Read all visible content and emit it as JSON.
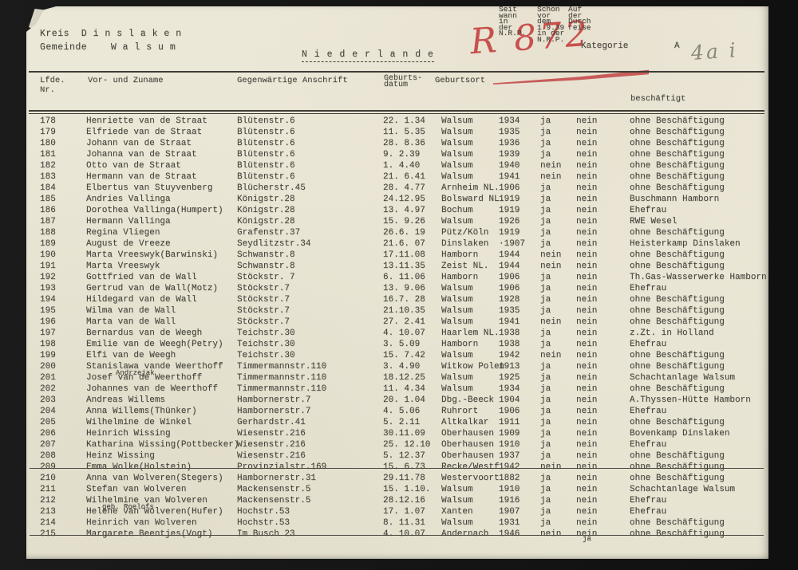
{
  "header": {
    "kreis_line": "Kreis  D i n s l a k e n",
    "gemeinde_line": "Gemeinde    W a l s u m",
    "country_heading": "N i e d e r l a n d e",
    "stamp": "R 872",
    "stamp_color": "#c43c3a",
    "category_label": "Kategorie",
    "category_value": "A",
    "pencil_note": "4a i"
  },
  "table": {
    "columns": {
      "nr": "Lfde.\nNr.",
      "name": "Vor- und Zuname",
      "address": "Gegenwärtige Anschrift",
      "born": "Geburts-\ndatum",
      "place": "Geburtsort",
      "seit": "Seit\nwann\nin\nder\nN.R.P.",
      "schon": "Schon\nvor\ndem\n1.9.39\nin der\nN.R.P.",
      "auf": "Auf\nder\nDurch\nreise",
      "job": "beschäftigt"
    },
    "rows": [
      {
        "nr": "178",
        "name": "Henriette van de Straat",
        "address": "Blütenstr.6",
        "born": "22. 1.34",
        "place": "Walsum",
        "seit": "1934",
        "schon": "ja",
        "auf": "nein",
        "job": "ohne Beschäftigung"
      },
      {
        "nr": "179",
        "name": "Elfriede van de Straat",
        "address": "Blütenstr.6",
        "born": "11. 5.35",
        "place": "Walsum",
        "seit": "1935",
        "schon": "ja",
        "auf": "nein",
        "job": "ohne Beschäftigung"
      },
      {
        "nr": "180",
        "name": "Johann van de Straat",
        "address": "Blütenstr.6",
        "born": "28. 8.36",
        "place": "Walsum",
        "seit": "1936",
        "schon": "ja",
        "auf": "nein",
        "job": "ohne Beschäftigung"
      },
      {
        "nr": "181",
        "name": "Johanna van de Straat",
        "address": "Blütenstr.6",
        "born": "9. 2.39",
        "place": "Walsum",
        "seit": "1939",
        "schon": "ja",
        "auf": "nein",
        "job": "ohne Beschäftigung"
      },
      {
        "nr": "182",
        "name": "Otto van de Straat",
        "address": "Blütenstr.6",
        "born": "1. 4.40",
        "place": "Walsum",
        "seit": "1940",
        "schon": "nein",
        "auf": "nein",
        "job": "ohne Beschäftigung"
      },
      {
        "nr": "183",
        "name": "Hermann van de Straat",
        "address": "Blütenstr.6",
        "born": "21. 6.41",
        "place": "Walsum",
        "seit": "1941",
        "schon": "nein",
        "auf": "nein",
        "job": "ohne Beschäftigung"
      },
      {
        "nr": "184",
        "name": "Elbertus van Stuyvenberg",
        "address": "Blücherstr.45",
        "born": "28. 4.77",
        "place": "Arnheim NL.",
        "seit": "1906",
        "schon": "ja",
        "auf": "nein",
        "job": "ohne Beschäftigung"
      },
      {
        "nr": "185",
        "name": "Andries Vallinga",
        "address": "Königstr.28",
        "born": "24.12.95",
        "place": "Bolsward NL.",
        "seit": "1919",
        "schon": "ja",
        "auf": "nein",
        "job": "Buschmann Hamborn"
      },
      {
        "nr": "186",
        "name": "Dorothea Vallinga(Humpert)",
        "address": "Königstr.28",
        "born": "13. 4.97",
        "place": "Bochum",
        "seit": "1919",
        "schon": "ja",
        "auf": "nein",
        "job": "Ehefrau"
      },
      {
        "nr": "187",
        "name": "Hermann Vallinga",
        "address": "Königstr.28",
        "born": "15. 9.26",
        "place": "Walsum",
        "seit": "1926",
        "schon": "ja",
        "auf": "nein",
        "job": "RWE Wesel"
      },
      {
        "nr": "188",
        "name": "Regina Vliegen",
        "address": "Grafenstr.37",
        "born": "26.6. 19",
        "place": "Pütz/Köln",
        "seit": "1919",
        "schon": "ja",
        "auf": "nein",
        "job": "ohne Beschäftigung"
      },
      {
        "nr": "189",
        "name": "August de Vreeze",
        "address": "Seydlitzstr.34",
        "born": "21.6. 07",
        "place": "Dinslaken",
        "seit": "·1907",
        "schon": "ja",
        "auf": "nein",
        "job": "Heisterkamp Dinslaken"
      },
      {
        "nr": "190",
        "name": "Marta Vreeswyk(Barwinski)",
        "address": "Schwanstr.8",
        "born": "17.11.08",
        "place": "Hamborn",
        "seit": "1944",
        "schon": "nein",
        "auf": "nein",
        "job": "ohne Beschäftigung"
      },
      {
        "nr": "191",
        "name": "Marta Vreeswyk",
        "address": "Schwanstr.8",
        "born": "13.11.35",
        "place": "Zeist NL.",
        "seit": "1944",
        "schon": "nein",
        "auf": "nein",
        "job": "ohne Beschäftigung"
      },
      {
        "nr": "192",
        "name": "Gottfried van de Wall",
        "address": "Stöckstr. 7",
        "born": "6. 11.06",
        "place": "Hamborn",
        "seit": "1906",
        "schon": "ja",
        "auf": "nein",
        "job": "Th.Gas-Wasserwerke Hamborn"
      },
      {
        "nr": "193",
        "name": "Gertrud van de Wall(Motz)",
        "address": "Stöckstr.7",
        "born": "13. 9.06",
        "place": "Walsum",
        "seit": "1906",
        "schon": "ja",
        "auf": "nein",
        "job": "Ehefrau"
      },
      {
        "nr": "194",
        "name": "Hildegard van de Wall",
        "address": "Stöckstr.7",
        "born": "16.7. 28",
        "place": "Walsum",
        "seit": "1928",
        "schon": "ja",
        "auf": "nein",
        "job": "ohne Beschäftigung"
      },
      {
        "nr": "195",
        "name": "Wilma van de Wall",
        "address": "Stöckstr.7",
        "born": "21.10.35",
        "place": "Walsum",
        "seit": "1935",
        "schon": "ja",
        "auf": "nein",
        "job": "ohne Beschäftigung"
      },
      {
        "nr": "196",
        "name": "Marta van de Wall",
        "address": "Stöckstr.7",
        "born": "27. 2.41",
        "place": "Walsum",
        "seit": "1941",
        "schon": "nein",
        "auf": "nein",
        "job": "ohne Beschäftigung"
      },
      {
        "nr": "197",
        "name": "Bernardus van de Weegh",
        "address": "Teichstr.30",
        "born": "4. 10.07",
        "place": "Haarlem NL.",
        "seit": "1938",
        "schon": "ja",
        "auf": "nein",
        "job": "z.Zt. in Holland"
      },
      {
        "nr": "198",
        "name": "Emilie van de Weegh(Petry)",
        "address": "Teichstr.30",
        "born": "3. 5.09",
        "place": "Hamborn",
        "seit": "1938",
        "schon": "ja",
        "auf": "nein",
        "job": "Ehefrau"
      },
      {
        "nr": "199",
        "name": "Elfi van de Weegh",
        "address": "Teichstr.30",
        "born": "15. 7.42",
        "place": "Walsum",
        "seit": "1942",
        "schon": "nein",
        "auf": "nein",
        "job": "ohne Beschäftigung"
      },
      {
        "nr": "200",
        "name": "Stanislawa vande Weerthoff",
        "note_below": "Andrzejak",
        "address": "Timmermannstr.110",
        "born": "3. 4.90",
        "place": "Witkow Polen",
        "seit": "1913",
        "schon": "ja",
        "auf": "nein",
        "job": "ohne Beschäftigung"
      },
      {
        "nr": "201",
        "name": "Josef van de Weerthoff",
        "address": "Timmermannstr.110",
        "born": "18.12.25",
        "place": "Walsum",
        "seit": "1925",
        "schon": "ja",
        "auf": "nein",
        "job": "Schachtanlage Walsum"
      },
      {
        "nr": "202",
        "name": "Johannes van de Weerthoff",
        "address": "Timmermannstr.110",
        "born": "11. 4.34",
        "place": "Walsum",
        "seit": "1934",
        "schon": "ja",
        "auf": "nein",
        "job": "ohne Beschäftigung"
      },
      {
        "nr": "203",
        "name": "Andreas Willems",
        "address": "Hambornerstr.7",
        "born": "20. 1.04",
        "place": "Dbg.-Beeck",
        "seit": "1904",
        "schon": "ja",
        "auf": "nein",
        "job": "A.Thyssen-Hütte Hamborn"
      },
      {
        "nr": "204",
        "name": "Anna Willems(Thünker)",
        "address": "Hambornerstr.7",
        "born": "4. 5.06",
        "place": "Ruhrort",
        "seit": "1906",
        "schon": "ja",
        "auf": "nein",
        "job": "Ehefrau"
      },
      {
        "nr": "205",
        "name": "Wilhelmine de Winkel",
        "address": "Gerhardstr.41",
        "born": "5. 2.11",
        "place": "Altkalkar",
        "seit": "1911",
        "schon": "ja",
        "auf": "nein",
        "job": "ohne Beschäftigung"
      },
      {
        "nr": "206",
        "name": "Heinrich Wissing",
        "address": "Wiesenstr.216",
        "born": "30.11.09",
        "place": "Oberhausen",
        "seit": "1909",
        "schon": "ja",
        "auf": "nein",
        "job": "Bovenkamp Dinslaken"
      },
      {
        "nr": "207",
        "name": "Katharina Wissing(Pottbecker)",
        "address": "Wiesenstr.216",
        "born": "25. 12.10",
        "place": "Oberhausen",
        "seit": "1910",
        "schon": "ja",
        "auf": "nein",
        "job": "Ehefrau"
      },
      {
        "nr": "208",
        "name": "Heinz Wissing",
        "address": "Wiesenstr.216",
        "born": "5. 12.37",
        "place": "Oberhausen",
        "seit": "1937",
        "schon": "ja",
        "auf": "nein",
        "job": "ohne Beschäftigung"
      },
      {
        "nr": "209",
        "name": "Emma Wolke(Holstein)",
        "address": "Provinzialstr.169",
        "born": "15. 6.73",
        "place": "Recke/Westf.",
        "seit": "1942",
        "schon": "nein",
        "auf": "nein",
        "job": "ohne Beschäftigung",
        "struck": true
      },
      {
        "nr": "210",
        "name": "Anna van Wolveren(Stegers)",
        "address": "Hambornerstr.31",
        "born": "29.11.78",
        "place": "Westervoort",
        "seit": "1882",
        "schon": "ja",
        "auf": "nein",
        "job": "ohne Beschäftigung"
      },
      {
        "nr": "211",
        "name": "Stefan van Wolveren",
        "address": "Mackensenstr.5",
        "born": "15. 1.10.",
        "place": "Walsum",
        "seit": "1910",
        "schon": "ja",
        "auf": "nein",
        "job": "Schachtanlage Walsum"
      },
      {
        "nr": "212",
        "name": "Wilhelmine van Wolveren",
        "address": "Mackensenstr.5",
        "born": "28.12.16",
        "place": "Walsum",
        "seit": "1916",
        "schon": "ja",
        "auf": "nein",
        "job": "Ehefrau"
      },
      {
        "nr": "213",
        "name": "Helene van Wolveren(Hufer)",
        "note_above": "geb. Roelofs",
        "address": "Hochstr.53",
        "born": "17. 1.07",
        "place": "Xanten",
        "seit": "1907",
        "schon": "ja",
        "auf": "nein",
        "job": "Ehefrau"
      },
      {
        "nr": "214",
        "name": "Heinrich van Wolveren",
        "address": "Hochstr.53",
        "born": "8. 11.31",
        "place": "Walsum",
        "seit": "1931",
        "schon": "ja",
        "auf": "nein",
        "job": "ohne Beschäftigung"
      },
      {
        "nr": "215",
        "name": "Margarete Beentjes(Vogt)",
        "address": "Im Busch 23",
        "born": "4. 10.07",
        "place": "Andernach",
        "seit": "1946",
        "schon": "nein",
        "auf": "nein",
        "auf_note": "ja",
        "job": "ohne Beschäftigung",
        "struck": true
      }
    ]
  }
}
